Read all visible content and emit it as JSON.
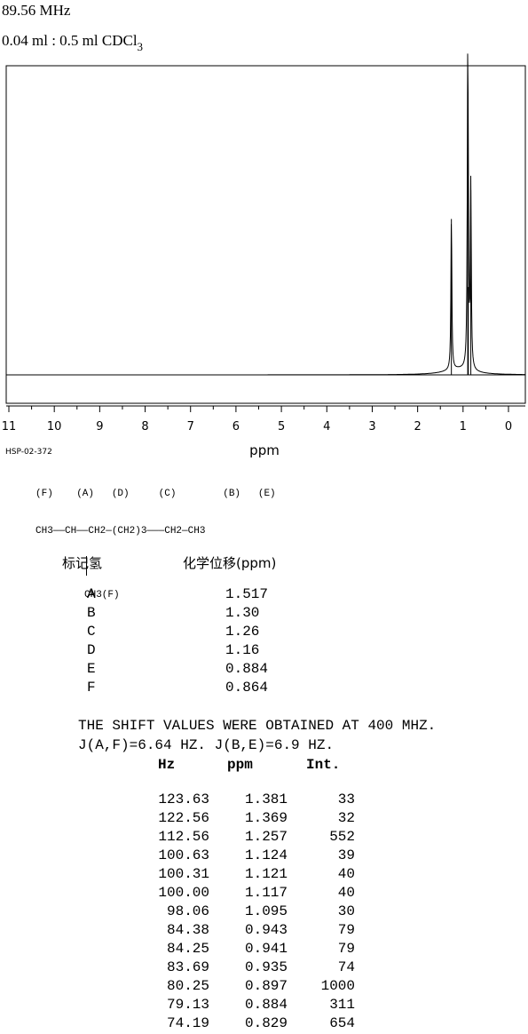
{
  "header": {
    "frequency": "89.56 MHz",
    "solvent_main": "0.04 ml : 0.5 ml CDCl",
    "solvent_sub": "3"
  },
  "chart_data": {
    "type": "line",
    "xlabel": "ppm",
    "xlim": [
      11,
      0
    ],
    "x_reversed": true,
    "x_ticks": [
      "11",
      "10",
      "9",
      "8",
      "7",
      "6",
      "5",
      "4",
      "3",
      "2",
      "1",
      "0"
    ],
    "peaks": [
      {
        "ppm": 1.257,
        "intensity": 552
      },
      {
        "ppm": 0.897,
        "intensity": 1000
      },
      {
        "ppm": 0.884,
        "intensity": 311
      },
      {
        "ppm": 0.829,
        "intensity": 654
      }
    ]
  },
  "code": "HSP-02-372",
  "structure": {
    "line1": "(F)    (A)   (D)     (C)        (B)   (E)",
    "line2": "CH3——CH——CH2—(CH2)3———CH2—CH3",
    "line3": "CH3(F)"
  },
  "assignment": {
    "header_label": "标记氢",
    "header_shift": "化学位移(ppm)",
    "rows": [
      {
        "label": "A",
        "shift": "1.517"
      },
      {
        "label": "B",
        "shift": "1.30"
      },
      {
        "label": "C",
        "shift": "1.26"
      },
      {
        "label": "D",
        "shift": "1.16"
      },
      {
        "label": "E",
        "shift": "0.884"
      },
      {
        "label": "F",
        "shift": "0.864"
      }
    ]
  },
  "notes": {
    "line1": "THE SHIFT VALUES WERE OBTAINED AT 400 MHZ.",
    "line2": "J(A,F)=6.64 HZ. J(B,E)=6.9 HZ."
  },
  "peak_table": {
    "headers": [
      "Hz",
      "ppm",
      "Int."
    ],
    "rows": [
      [
        "123.63",
        "1.381",
        "33"
      ],
      [
        "122.56",
        "1.369",
        "32"
      ],
      [
        "112.56",
        "1.257",
        "552"
      ],
      [
        "100.63",
        "1.124",
        "39"
      ],
      [
        "100.31",
        "1.121",
        "40"
      ],
      [
        "100.00",
        "1.117",
        "40"
      ],
      [
        "98.06",
        "1.095",
        "30"
      ],
      [
        "84.38",
        "0.943",
        "79"
      ],
      [
        "84.25",
        "0.941",
        "79"
      ],
      [
        "83.69",
        "0.935",
        "74"
      ],
      [
        "80.25",
        "0.897",
        "1000"
      ],
      [
        "79.13",
        "0.884",
        "311"
      ],
      [
        "74.19",
        "0.829",
        "654"
      ]
    ]
  }
}
